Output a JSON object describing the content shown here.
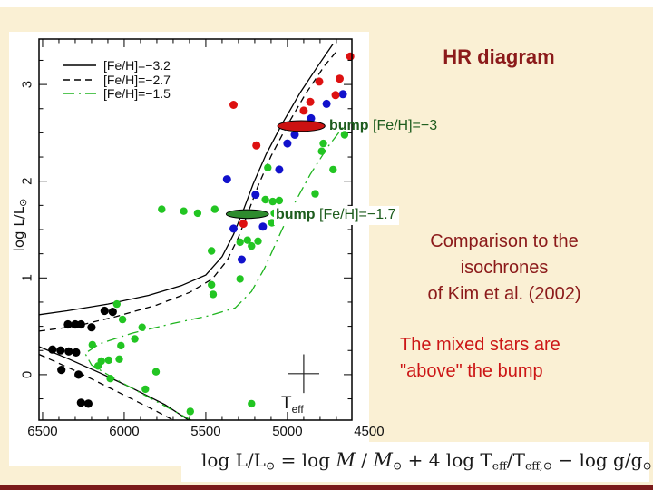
{
  "slide": {
    "title": "HR diagram",
    "texts": {
      "comparison": {
        "l1": "Comparison to the",
        "l2": "isochrones",
        "l3": "of Kim et al. (2002)"
      },
      "mixed": {
        "l1": "The mixed stars are",
        "l2": "\"above\" the bump"
      }
    },
    "annotations": {
      "bump1": {
        "bold": "bump",
        "rest": " [Fe/H]=−3"
      },
      "bump2": {
        "bold": "bump",
        "rest": " [Fe/H]=−1.7"
      }
    },
    "formula_segments": [
      {
        "t": "log L/L"
      },
      {
        "t": "⊙",
        "sub": true
      },
      {
        "t": " = log "
      },
      {
        "t": "M",
        "script": true
      },
      {
        "t": " / "
      },
      {
        "t": "M",
        "script": true
      },
      {
        "t": "⊙",
        "sub": true
      },
      {
        "t": " + 4 log T"
      },
      {
        "t": "eff",
        "sub": true
      },
      {
        "t": "/T"
      },
      {
        "t": "eff,⊙",
        "sub": true
      },
      {
        "t": " − log g/g"
      },
      {
        "t": "⊙",
        "sub": true
      }
    ],
    "colors": {
      "background": "#faf0d4",
      "plot_bg": "#ffffff",
      "title_red": "#8b1a1a",
      "bright_red": "#cc1616",
      "dark_green": "#1d5c1d",
      "bottom_bar": "#7a1a1a"
    }
  },
  "chart_data": {
    "type": "scatter",
    "title": "",
    "xlabel_main": "T",
    "xlabel_sub": "eff",
    "ylabel_main": "log L/L",
    "ylabel_sub": "⊙",
    "xlim": [
      6522,
      4605
    ],
    "ylim": [
      -0.47,
      3.47
    ],
    "x_ticks": [
      6500,
      6000,
      5500,
      5000,
      4500
    ],
    "y_ticks": [
      0,
      1,
      2,
      3
    ],
    "x_minor_step": 100,
    "y_minor_step": 0.25,
    "grid": false,
    "legend_position": "upper-left",
    "legend": [
      {
        "label": "[Fe/H]=−3.2",
        "style": "solid",
        "color": "#000000"
      },
      {
        "label": "[Fe/H]=−2.7",
        "style": "dashed",
        "color": "#000000"
      },
      {
        "label": "[Fe/H]=−1.5",
        "style": "dashdot",
        "color": "#1eb41e"
      }
    ],
    "isochrones": [
      {
        "name": "feh-3.2-main-sequence",
        "style": "solid",
        "color": "#000000",
        "points": [
          [
            6522,
            0.29
          ],
          [
            6350,
            0.17
          ],
          [
            6150,
            0.02
          ],
          [
            5950,
            -0.14
          ],
          [
            5750,
            -0.31
          ],
          [
            5605,
            -0.47
          ]
        ]
      },
      {
        "name": "feh-3.2-rgb",
        "style": "solid",
        "color": "#000000",
        "points": [
          [
            6522,
            0.62
          ],
          [
            6350,
            0.66
          ],
          [
            6100,
            0.73
          ],
          [
            5850,
            0.82
          ],
          [
            5650,
            0.92
          ],
          [
            5500,
            1.03
          ],
          [
            5400,
            1.22
          ],
          [
            5330,
            1.45
          ],
          [
            5270,
            1.7
          ],
          [
            5210,
            1.97
          ],
          [
            5130,
            2.28
          ],
          [
            5030,
            2.6
          ],
          [
            4920,
            2.92
          ],
          [
            4810,
            3.2
          ],
          [
            4720,
            3.42
          ]
        ]
      },
      {
        "name": "feh-2.7-main-sequence",
        "style": "dashed",
        "color": "#000000",
        "points": [
          [
            6522,
            0.21
          ],
          [
            6300,
            0.04
          ],
          [
            6050,
            -0.17
          ],
          [
            5800,
            -0.38
          ],
          [
            5700,
            -0.47
          ]
        ]
      },
      {
        "name": "feh-2.7-rgb",
        "style": "dashed",
        "color": "#000000",
        "points": [
          [
            6522,
            0.45
          ],
          [
            6300,
            0.5
          ],
          [
            6050,
            0.6
          ],
          [
            5800,
            0.72
          ],
          [
            5600,
            0.85
          ],
          [
            5460,
            0.99
          ],
          [
            5370,
            1.18
          ],
          [
            5300,
            1.42
          ],
          [
            5240,
            1.68
          ],
          [
            5180,
            1.95
          ],
          [
            5100,
            2.26
          ],
          [
            5000,
            2.58
          ],
          [
            4890,
            2.9
          ],
          [
            4770,
            3.2
          ],
          [
            4690,
            3.36
          ]
        ]
      },
      {
        "name": "feh-1.5",
        "style": "dashdot",
        "color": "#1eb41e",
        "points": [
          [
            5590,
            -0.47
          ],
          [
            5800,
            -0.28
          ],
          [
            6050,
            -0.05
          ],
          [
            6200,
            0.1
          ],
          [
            6240,
            0.22
          ],
          [
            6150,
            0.32
          ],
          [
            5950,
            0.43
          ],
          [
            5700,
            0.53
          ],
          [
            5480,
            0.61
          ],
          [
            5320,
            0.69
          ],
          [
            5220,
            0.86
          ],
          [
            5140,
            1.1
          ],
          [
            5060,
            1.4
          ],
          [
            4970,
            1.73
          ],
          [
            4860,
            2.07
          ],
          [
            4750,
            2.36
          ],
          [
            4640,
            2.6
          ]
        ]
      }
    ],
    "series": [
      {
        "name": "black-stars",
        "color": "#000000",
        "r": 4.6,
        "points": [
          [
            6120,
            0.66
          ],
          [
            6070,
            0.65
          ],
          [
            6345,
            0.52
          ],
          [
            6300,
            0.52
          ],
          [
            6265,
            0.52
          ],
          [
            6200,
            0.49
          ],
          [
            6440,
            0.26
          ],
          [
            6390,
            0.25
          ],
          [
            6340,
            0.24
          ],
          [
            6295,
            0.23
          ],
          [
            6385,
            0.05
          ],
          [
            6280,
            0.0
          ],
          [
            6265,
            -0.29
          ],
          [
            6220,
            -0.3
          ]
        ]
      },
      {
        "name": "green-stars",
        "color": "#22c522",
        "r": 4.2,
        "points": [
          [
            6045,
            0.73
          ],
          [
            6010,
            0.57
          ],
          [
            5890,
            0.49
          ],
          [
            5935,
            0.37
          ],
          [
            6195,
            0.31
          ],
          [
            6020,
            0.3
          ],
          [
            6095,
            0.15
          ],
          [
            6140,
            0.14
          ],
          [
            6030,
            0.16
          ],
          [
            6160,
            0.09
          ],
          [
            5805,
            0.03
          ],
          [
            6085,
            -0.04
          ],
          [
            5870,
            -0.15
          ],
          [
            5595,
            -0.38
          ],
          [
            5220,
            -0.3
          ],
          [
            5465,
            1.28
          ],
          [
            5465,
            0.93
          ],
          [
            5455,
            0.83
          ],
          [
            5290,
            0.99
          ],
          [
            5770,
            1.71
          ],
          [
            5635,
            1.69
          ],
          [
            5550,
            1.67
          ],
          [
            5445,
            1.71
          ],
          [
            5135,
            1.81
          ],
          [
            5090,
            1.79
          ],
          [
            5050,
            1.8
          ],
          [
            5290,
            1.37
          ],
          [
            5245,
            1.39
          ],
          [
            5180,
            1.38
          ],
          [
            5220,
            1.33
          ],
          [
            5095,
            1.57
          ],
          [
            5080,
            1.67
          ],
          [
            5120,
            2.14
          ],
          [
            4830,
            1.87
          ],
          [
            4720,
            2.12
          ],
          [
            4780,
            2.39
          ],
          [
            4790,
            2.31
          ],
          [
            4650,
            2.48
          ]
        ]
      },
      {
        "name": "blue-stars",
        "color": "#1111cc",
        "r": 4.5,
        "points": [
          [
            4760,
            2.8
          ],
          [
            4660,
            2.9
          ],
          [
            4855,
            2.65
          ],
          [
            4955,
            2.48
          ],
          [
            5000,
            2.39
          ],
          [
            5050,
            2.12
          ],
          [
            5370,
            2.02
          ],
          [
            5195,
            1.86
          ],
          [
            5330,
            1.51
          ],
          [
            5150,
            1.53
          ],
          [
            5280,
            1.19
          ]
        ]
      },
      {
        "name": "red-stars",
        "color": "#dd1111",
        "r": 4.5,
        "points": [
          [
            4615,
            3.29
          ],
          [
            4680,
            3.06
          ],
          [
            4805,
            3.03
          ],
          [
            4705,
            2.89
          ],
          [
            4860,
            2.82
          ],
          [
            4900,
            2.73
          ],
          [
            5330,
            2.79
          ],
          [
            5190,
            2.37
          ],
          [
            5270,
            1.56
          ]
        ]
      }
    ],
    "bumps": [
      {
        "name": "bump-feh-3",
        "center": [
          4915,
          2.57
        ],
        "rx_K": 145,
        "ry_L": 0.055,
        "fill": "#cc1111"
      },
      {
        "name": "bump-feh-1.7",
        "center": [
          5245,
          1.66
        ],
        "rx_K": 130,
        "ry_L": 0.045,
        "fill": "#2e8b2e"
      }
    ],
    "error_cross": {
      "center": [
        4900,
        0.01
      ],
      "half_width_K": 95,
      "half_height_L": 0.2
    }
  }
}
